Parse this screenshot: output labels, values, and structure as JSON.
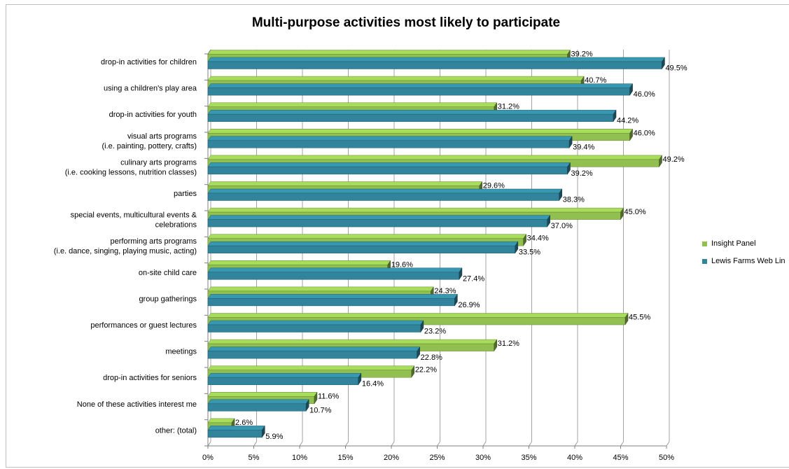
{
  "chart_data": {
    "type": "bar",
    "orientation": "horizontal",
    "title": "Multi-purpose activities most likely to participate",
    "categories": [
      [
        "drop-in activities for children"
      ],
      [
        "using a children's play area"
      ],
      [
        "drop-in activities for youth"
      ],
      [
        "visual arts programs",
        "(i.e. painting, pottery, crafts)"
      ],
      [
        "culinary arts programs",
        "(i.e. cooking lessons, nutrition classes)"
      ],
      [
        "parties"
      ],
      [
        "special events, multicultural events &",
        "celebrations"
      ],
      [
        "performing arts programs",
        "(i.e. dance, singing, playing music, acting)"
      ],
      [
        "on-site child care"
      ],
      [
        "group gatherings"
      ],
      [
        "performances or guest lectures"
      ],
      [
        "meetings"
      ],
      [
        "drop-in activities for seniors"
      ],
      [
        "None of these activities interest me"
      ],
      [
        "other: (total)"
      ]
    ],
    "series": [
      {
        "name": "Insight Panel",
        "color": "#92c050",
        "values": [
          39.2,
          40.7,
          31.2,
          46.0,
          49.2,
          29.6,
          45.0,
          34.4,
          19.6,
          24.3,
          45.5,
          31.2,
          22.2,
          11.6,
          2.6
        ],
        "labels": [
          "39.2%",
          "40.7%",
          "31.2%",
          "46.0%",
          "49.2%",
          "29.6%",
          "45.0%",
          "34.4%",
          "19.6%",
          "24.3%",
          "45.5%",
          "31.2%",
          "22.2%",
          "11.6%",
          "2.6%"
        ]
      },
      {
        "name": "Lewis Farms Web Lin",
        "color": "#31849b",
        "values": [
          49.5,
          46.0,
          44.2,
          39.4,
          39.2,
          38.3,
          37.0,
          33.5,
          27.4,
          26.9,
          23.2,
          22.8,
          16.4,
          10.7,
          5.9
        ],
        "labels": [
          "49.5%",
          "46.0%",
          "44.2%",
          "39.4%",
          "39.2%",
          "38.3%",
          "37.0%",
          "33.5%",
          "27.4%",
          "26.9%",
          "23.2%",
          "22.8%",
          "16.4%",
          "10.7%",
          "5.9%"
        ]
      }
    ],
    "xlim": [
      0,
      50
    ],
    "xticks": [
      0,
      5,
      10,
      15,
      20,
      25,
      30,
      35,
      40,
      45,
      50
    ],
    "xtick_labels": [
      "0%",
      "5%",
      "10%",
      "15%",
      "20%",
      "25%",
      "30%",
      "35%",
      "40%",
      "45%",
      "50%"
    ],
    "grid": true,
    "legend_position": "right"
  }
}
